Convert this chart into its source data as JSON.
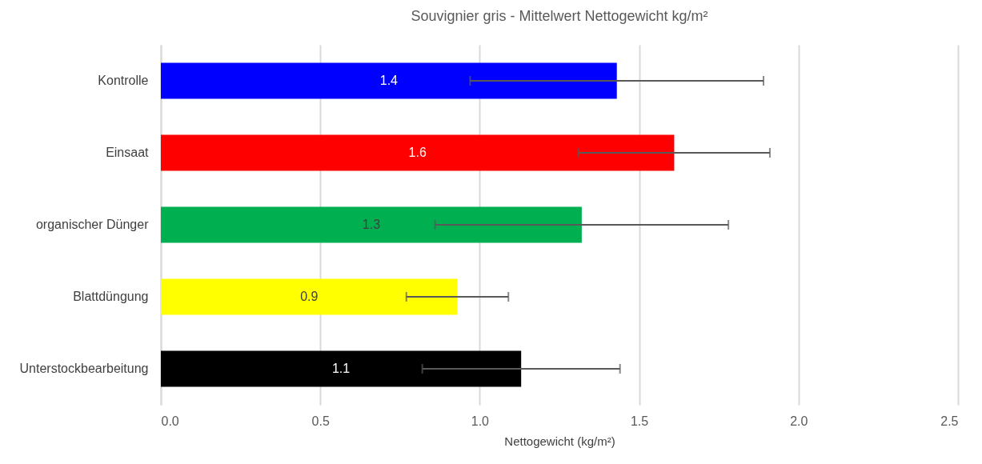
{
  "chart_data": {
    "type": "bar",
    "orientation": "horizontal",
    "title": "Souvignier gris - Mittelwert Nettogewicht kg/m²",
    "xlabel": "Nettogewicht (kg/m²)",
    "categories": [
      "Kontrolle",
      "Einsaat",
      "organischer Dünger",
      "Blattdüngung",
      "Unterstockbearbeitung"
    ],
    "values": [
      1.43,
      1.61,
      1.32,
      0.93,
      1.13
    ],
    "colors": [
      "#0000ff",
      "#ff0000",
      "#00b050",
      "#ffff00",
      "#000000"
    ],
    "errors": [
      [
        0.97,
        1.89
      ],
      [
        1.31,
        1.91
      ],
      [
        0.86,
        1.78
      ],
      [
        0.77,
        1.09
      ],
      [
        0.82,
        1.44
      ]
    ],
    "value_labels": [
      "1.4",
      "1.6",
      "1.3",
      "0.9",
      "1.1"
    ],
    "xlim": [
      0,
      2.5
    ],
    "xticks": [
      {
        "value": 0,
        "label": "0.0"
      },
      {
        "value": 0.5,
        "label": "0.5"
      },
      {
        "value": 1,
        "label": "1.0"
      },
      {
        "value": 1.5,
        "label": "1.5"
      },
      {
        "value": 2,
        "label": "2.0"
      },
      {
        "value": 2.5,
        "label": "2.5"
      }
    ],
    "grid": "x"
  }
}
